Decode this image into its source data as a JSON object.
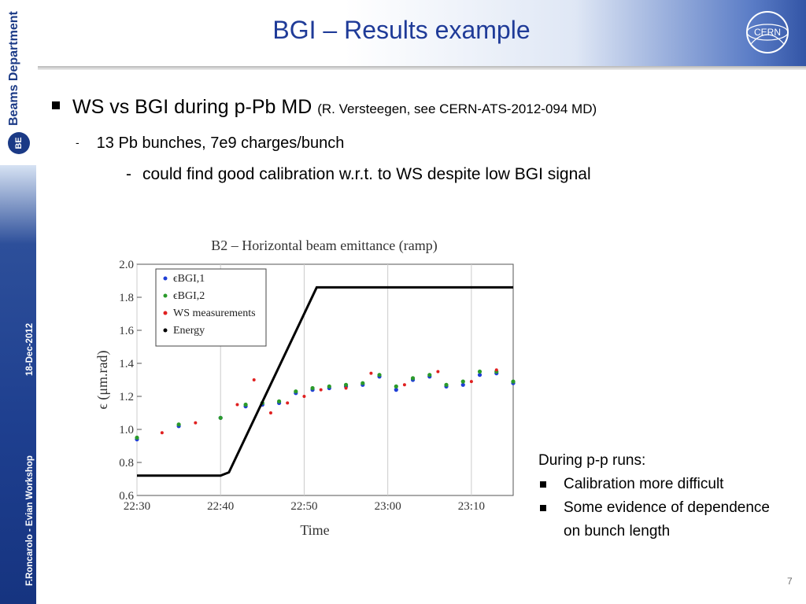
{
  "sidebar": {
    "department": "Beams Department",
    "logo_text": "BE",
    "footer_author": "F.Roncarolo - Evian Workshop",
    "footer_date": "18-Dec-2012"
  },
  "header": {
    "title": "BGI – Results example",
    "logo_text": "CERN"
  },
  "bullets": {
    "level1": {
      "text": "WS vs BGI during p-Pb MD",
      "ref": "(R. Versteegen, see CERN-ATS-2012-094 MD)"
    },
    "level2": {
      "marker": "-",
      "text": "13 Pb bunches, 7e9 charges/bunch"
    },
    "level3": {
      "marker": "-",
      "text": "could find good calibration w.r.t. to WS despite low BGI signal"
    }
  },
  "note": {
    "heading": "During p-p runs:",
    "items": [
      "Calibration more difficult",
      "Some evidence of dependence on bunch length"
    ]
  },
  "page_number": "7",
  "colors": {
    "title": "#1f3b98",
    "bgi1": "#1f3fd6",
    "bgi2": "#2a9a2a",
    "ws": "#e02020",
    "energy": "#000000"
  },
  "chart_data": {
    "type": "scatter",
    "title": "B2 – Horizontal beam emittance (ramp)",
    "xlabel": "Time",
    "ylabel": "ϵ (μm.rad)",
    "x_ticks": [
      "22:30",
      "22:40",
      "22:50",
      "23:00",
      "23:10"
    ],
    "y_ticks": [
      "0.6",
      "0.8",
      "1.0",
      "1.2",
      "1.4",
      "1.6",
      "1.8",
      "2.0"
    ],
    "xlim": [
      "22:30",
      "23:15"
    ],
    "ylim": [
      0.6,
      2.0
    ],
    "grid": "vertical",
    "legend_position": "top-left",
    "series": [
      {
        "name": "ϵBGI,1",
        "x": [
          "22:30",
          "22:35",
          "22:40",
          "22:43",
          "22:45",
          "22:47",
          "22:49",
          "22:51",
          "22:53",
          "22:55",
          "22:57",
          "22:59",
          "23:01",
          "23:03",
          "23:05",
          "23:07",
          "23:09",
          "23:11",
          "23:13",
          "23:15"
        ],
        "values": [
          0.94,
          1.02,
          1.07,
          1.14,
          1.15,
          1.16,
          1.22,
          1.24,
          1.25,
          1.26,
          1.27,
          1.32,
          1.24,
          1.3,
          1.32,
          1.26,
          1.27,
          1.33,
          1.34,
          1.28
        ]
      },
      {
        "name": "ϵBGI,2",
        "x": [
          "22:30",
          "22:35",
          "22:40",
          "22:43",
          "22:45",
          "22:47",
          "22:49",
          "22:51",
          "22:53",
          "22:55",
          "22:57",
          "22:59",
          "23:01",
          "23:03",
          "23:05",
          "23:07",
          "23:09",
          "23:11",
          "23:13",
          "23:15"
        ],
        "values": [
          0.95,
          1.03,
          1.07,
          1.15,
          1.16,
          1.17,
          1.23,
          1.25,
          1.26,
          1.27,
          1.28,
          1.33,
          1.26,
          1.31,
          1.33,
          1.27,
          1.29,
          1.35,
          1.35,
          1.29
        ]
      },
      {
        "name": "WS measurements",
        "x": [
          "22:33",
          "22:37",
          "22:42",
          "22:44",
          "22:46",
          "22:48",
          "22:50",
          "22:52",
          "22:55",
          "22:58",
          "23:02",
          "23:06",
          "23:10",
          "23:13"
        ],
        "values": [
          0.98,
          1.04,
          1.15,
          1.3,
          1.1,
          1.16,
          1.2,
          1.24,
          1.25,
          1.34,
          1.27,
          1.35,
          1.29,
          1.36
        ]
      },
      {
        "name": "Energy",
        "type": "line",
        "x": [
          "22:30",
          "22:40",
          "22:41",
          "22:51.5",
          "23:15"
        ],
        "values": [
          0.72,
          0.72,
          0.74,
          1.86,
          1.86
        ]
      }
    ]
  }
}
